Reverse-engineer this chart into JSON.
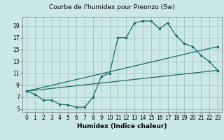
{
  "title": "Courbe de l'humidex pour Preonzo (Sw)",
  "xlabel": "Humidex (Indice chaleur)",
  "bg_color": "#cce8e6",
  "grid_color": "#a0c8c5",
  "line_color": "#1a6b6b",
  "xlim": [
    -0.5,
    23.5
  ],
  "ylim": [
    4.5,
    20.5
  ],
  "xticks": [
    0,
    1,
    2,
    3,
    4,
    5,
    6,
    7,
    8,
    9,
    10,
    11,
    12,
    13,
    14,
    15,
    16,
    17,
    18,
    19,
    20,
    21,
    22,
    23
  ],
  "yticks": [
    5,
    7,
    9,
    11,
    13,
    15,
    17,
    19
  ],
  "line1_x": [
    0,
    1,
    2,
    3,
    4,
    5,
    6,
    7,
    8,
    9,
    10,
    11,
    12,
    13,
    14,
    15,
    16,
    17,
    18,
    19,
    20,
    21,
    22,
    23
  ],
  "line1_y": [
    8.0,
    7.5,
    6.5,
    6.5,
    5.8,
    5.7,
    5.3,
    5.3,
    7.0,
    10.5,
    11.0,
    17.0,
    17.0,
    19.5,
    19.8,
    19.8,
    18.5,
    19.5,
    17.3,
    16.0,
    15.5,
    14.0,
    13.0,
    11.5
  ],
  "line2_x": [
    0,
    23
  ],
  "line2_y": [
    8.0,
    11.5
  ],
  "line3_x": [
    0,
    23
  ],
  "line3_y": [
    8.0,
    15.5
  ],
  "title_fontsize": 6.5,
  "axis_fontsize": 6.5,
  "tick_fontsize": 5.5
}
